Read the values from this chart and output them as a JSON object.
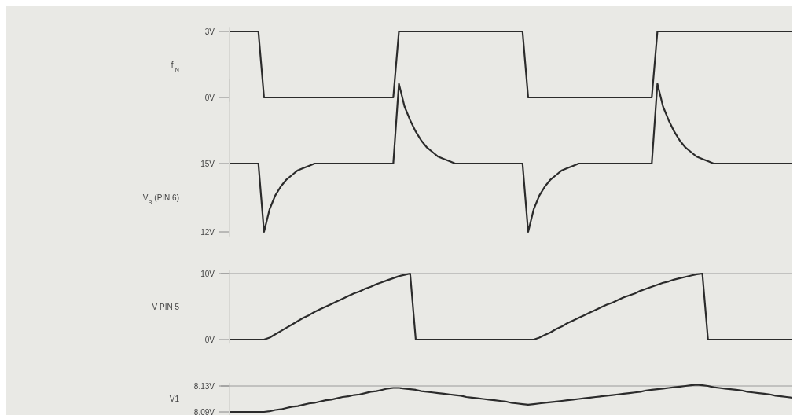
{
  "chart_data": [
    {
      "type": "line",
      "ylabel": "f$_{IN}$",
      "ylim": [
        -0.2,
        3.2
      ],
      "categories": [
        null,
        null,
        null,
        null,
        null,
        null,
        null,
        null,
        null,
        null,
        null,
        null,
        null,
        null,
        null,
        null,
        null,
        null,
        null,
        null,
        null,
        null,
        null,
        null,
        null,
        null,
        null,
        null,
        null,
        null,
        null,
        null,
        null,
        null,
        null,
        null,
        null,
        null,
        null,
        null,
        null,
        null,
        null,
        null,
        null,
        null,
        null,
        null,
        null,
        null,
        null,
        null,
        null,
        null,
        null,
        null,
        null,
        null,
        null,
        null,
        null,
        null,
        null,
        null,
        null,
        null,
        null,
        null,
        null,
        null,
        null,
        null,
        null,
        null,
        null,
        null,
        null,
        null,
        null,
        null,
        null,
        null,
        null,
        null,
        null,
        null,
        null,
        null,
        null,
        null,
        null,
        null,
        null,
        null,
        null,
        null,
        null,
        null,
        null,
        null,
        null
      ],
      "yticks": [
        {
          "value": 3,
          "label": "3V"
        },
        {
          "value": 0,
          "label": "0V"
        }
      ],
      "tick_labels": "y",
      "marker": "none",
      "line_style": "solid",
      "series": [
        {
          "color": "#2b2b2b",
          "values": [
            3,
            3,
            3,
            3,
            3,
            3,
            0,
            0,
            0,
            0,
            0,
            0,
            0,
            0,
            0,
            0,
            0,
            0,
            0,
            0,
            0,
            0,
            0,
            0,
            0,
            0,
            0,
            0,
            0,
            0,
            3,
            3,
            3,
            3,
            3,
            3,
            3,
            3,
            3,
            3,
            3,
            3,
            3,
            3,
            3,
            3,
            3,
            3,
            3,
            3,
            3,
            3,
            3,
            0,
            0,
            0,
            0,
            0,
            0,
            0,
            0,
            0,
            0,
            0,
            0,
            0,
            0,
            0,
            0,
            0,
            0,
            0,
            0,
            0,
            0,
            0,
            3,
            3,
            3,
            3,
            3,
            3,
            3,
            3,
            3,
            3,
            3,
            3,
            3,
            3,
            3,
            3,
            3,
            3,
            3,
            3,
            3,
            3,
            3,
            3,
            3
          ]
        }
      ]
    },
    {
      "type": "line",
      "ylabel": "V$_{B}$ (PIN 6)",
      "ylim": [
        11.8,
        18.7
      ],
      "categories": [
        null,
        null,
        null,
        null,
        null,
        null,
        null,
        null,
        null,
        null,
        null,
        null,
        null,
        null,
        null,
        null,
        null,
        null,
        null,
        null,
        null,
        null,
        null,
        null,
        null,
        null,
        null,
        null,
        null,
        null,
        null,
        null,
        null,
        null,
        null,
        null,
        null,
        null,
        null,
        null,
        null,
        null,
        null,
        null,
        null,
        null,
        null,
        null,
        null,
        null,
        null,
        null,
        null,
        null,
        null,
        null,
        null,
        null,
        null,
        null,
        null,
        null,
        null,
        null,
        null,
        null,
        null,
        null,
        null,
        null,
        null,
        null,
        null,
        null,
        null,
        null,
        null,
        null,
        null,
        null,
        null,
        null,
        null,
        null,
        null,
        null,
        null,
        null,
        null,
        null,
        null,
        null,
        null,
        null,
        null,
        null,
        null,
        null,
        null,
        null,
        null
      ],
      "yticks": [
        {
          "value": 15,
          "label": "15V"
        },
        {
          "value": 12,
          "label": "12V"
        }
      ],
      "tick_labels": "y",
      "marker": "none",
      "line_style": "solid",
      "series": [
        {
          "color": "#2b2b2b",
          "values": [
            15,
            15,
            15,
            15,
            15,
            15,
            12,
            13.0,
            13.6,
            14.0,
            14.3,
            14.5,
            14.7,
            14.8,
            14.9,
            15,
            15,
            15,
            15,
            15,
            15,
            15,
            15,
            15,
            15,
            15,
            15,
            15,
            15,
            15,
            18.5,
            17.5,
            16.9,
            16.4,
            16.0,
            15.7,
            15.5,
            15.3,
            15.2,
            15.1,
            15,
            15,
            15,
            15,
            15,
            15,
            15,
            15,
            15,
            15,
            15,
            15,
            15,
            12,
            13.0,
            13.6,
            14.0,
            14.3,
            14.5,
            14.7,
            14.8,
            14.9,
            15,
            15,
            15,
            15,
            15,
            15,
            15,
            15,
            15,
            15,
            15,
            15,
            15,
            15,
            18.5,
            17.5,
            16.9,
            16.4,
            16.0,
            15.7,
            15.5,
            15.3,
            15.2,
            15.1,
            15,
            15,
            15,
            15,
            15,
            15,
            15,
            15,
            15,
            15,
            15,
            15,
            15,
            15,
            15
          ]
        }
      ]
    },
    {
      "type": "line",
      "ylabel": "V PIN 5",
      "ylim": [
        -0.5,
        10.5
      ],
      "categories": [
        null,
        null,
        null,
        null,
        null,
        null,
        null,
        null,
        null,
        null,
        null,
        null,
        null,
        null,
        null,
        null,
        null,
        null,
        null,
        null,
        null,
        null,
        null,
        null,
        null,
        null,
        null,
        null,
        null,
        null,
        null,
        null,
        null,
        null,
        null,
        null,
        null,
        null,
        null,
        null,
        null,
        null,
        null,
        null,
        null,
        null,
        null,
        null,
        null,
        null,
        null,
        null,
        null,
        null,
        null,
        null,
        null,
        null,
        null,
        null,
        null,
        null,
        null,
        null,
        null,
        null,
        null,
        null,
        null,
        null,
        null,
        null,
        null,
        null,
        null,
        null,
        null,
        null,
        null,
        null,
        null,
        null,
        null,
        null,
        null,
        null,
        null,
        null,
        null,
        null,
        null,
        null,
        null,
        null,
        null,
        null,
        null,
        null,
        null,
        null,
        null
      ],
      "yticks": [
        {
          "value": 10,
          "label": "10V"
        },
        {
          "value": 0,
          "label": "0V"
        }
      ],
      "tick_labels": "y",
      "marker": "none",
      "line_style": "solid",
      "ref_lines": [
        {
          "axis": "y",
          "value": 10,
          "color": "#9a9a9a"
        }
      ],
      "series": [
        {
          "color": "#2b2b2b",
          "values": [
            0,
            0,
            0,
            0,
            0,
            0,
            0,
            0.3,
            0.8,
            1.3,
            1.8,
            2.3,
            2.8,
            3.3,
            3.7,
            4.2,
            4.6,
            5.0,
            5.4,
            5.8,
            6.2,
            6.6,
            7.0,
            7.3,
            7.7,
            8.0,
            8.4,
            8.7,
            9.0,
            9.3,
            9.6,
            9.8,
            10,
            0,
            0,
            0,
            0,
            0,
            0,
            0,
            0,
            0,
            0,
            0,
            0,
            0,
            0,
            0,
            0,
            0,
            0,
            0,
            0,
            0,
            0,
            0.3,
            0.7,
            1.1,
            1.6,
            2.0,
            2.5,
            2.9,
            3.3,
            3.7,
            4.1,
            4.5,
            4.9,
            5.3,
            5.6,
            6.0,
            6.4,
            6.7,
            7.0,
            7.4,
            7.7,
            8.0,
            8.3,
            8.6,
            8.8,
            9.1,
            9.3,
            9.5,
            9.7,
            9.9,
            10,
            0,
            0,
            0,
            0,
            0,
            0,
            0,
            0,
            0,
            0,
            0,
            0,
            0,
            0,
            0,
            0
          ]
        }
      ]
    },
    {
      "type": "line",
      "ylabel": "V1",
      "ylim": [
        8.085,
        8.135
      ],
      "categories": [
        null,
        null,
        null,
        null,
        null,
        null,
        null,
        null,
        null,
        null,
        null,
        null,
        null,
        null,
        null,
        null,
        null,
        null,
        null,
        null,
        null,
        null,
        null,
        null,
        null,
        null,
        null,
        null,
        null,
        null,
        null,
        null,
        null,
        null,
        null,
        null,
        null,
        null,
        null,
        null,
        null,
        null,
        null,
        null,
        null,
        null,
        null,
        null,
        null,
        null,
        null,
        null,
        null,
        null,
        null,
        null,
        null,
        null,
        null,
        null,
        null,
        null,
        null,
        null,
        null,
        null,
        null,
        null,
        null,
        null,
        null,
        null,
        null,
        null,
        null,
        null,
        null,
        null,
        null,
        null,
        null,
        null,
        null,
        null,
        null,
        null,
        null,
        null,
        null,
        null,
        null,
        null,
        null,
        null,
        null,
        null,
        null,
        null,
        null,
        null,
        null
      ],
      "yticks": [
        {
          "value": 8.13,
          "label": "8.13V"
        },
        {
          "value": 8.09,
          "label": "8.09V"
        }
      ],
      "tick_labels": "y",
      "marker": "none",
      "line_style": "solid",
      "ref_lines": [
        {
          "axis": "y",
          "value": 8.13,
          "color": "#9a9a9a"
        }
      ],
      "series": [
        {
          "color": "#2b2b2b",
          "values": [
            8.09,
            8.09,
            8.09,
            8.09,
            8.09,
            8.09,
            8.09,
            8.091,
            8.093,
            8.094,
            8.096,
            8.098,
            8.099,
            8.101,
            8.103,
            8.104,
            8.106,
            8.108,
            8.109,
            8.111,
            8.113,
            8.114,
            8.116,
            8.117,
            8.119,
            8.121,
            8.122,
            8.124,
            8.126,
            8.127,
            8.127,
            8.126,
            8.125,
            8.124,
            8.122,
            8.121,
            8.12,
            8.119,
            8.118,
            8.117,
            8.116,
            8.115,
            8.113,
            8.112,
            8.111,
            8.11,
            8.109,
            8.108,
            8.107,
            8.106,
            8.104,
            8.103,
            8.102,
            8.101,
            8.102,
            8.103,
            8.104,
            8.105,
            8.106,
            8.107,
            8.108,
            8.109,
            8.11,
            8.111,
            8.112,
            8.113,
            8.114,
            8.115,
            8.116,
            8.117,
            8.118,
            8.119,
            8.12,
            8.121,
            8.123,
            8.124,
            8.125,
            8.126,
            8.127,
            8.128,
            8.129,
            8.13,
            8.131,
            8.132,
            8.131,
            8.13,
            8.128,
            8.127,
            8.126,
            8.125,
            8.124,
            8.123,
            8.121,
            8.12,
            8.119,
            8.118,
            8.117,
            8.115,
            8.114,
            8.113,
            8.112
          ]
        }
      ]
    }
  ]
}
